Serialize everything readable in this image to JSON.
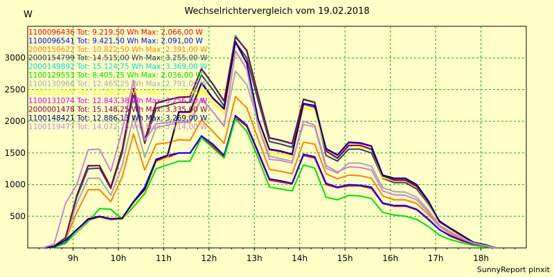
{
  "footer": "SunnyReport pinxit",
  "chart_data": {
    "type": "line",
    "title": "Wechselrichtervergleich vom 19.02.2018",
    "ylabel": "W",
    "xlim": [
      "08:00",
      "19:00"
    ],
    "ylim": [
      0,
      3500
    ],
    "yticks": [
      500,
      1000,
      1500,
      2000,
      2500,
      3000
    ],
    "xticks": [
      "9h",
      "10h",
      "11h",
      "12h",
      "13h",
      "14h",
      "15h",
      "16h",
      "17h",
      "18h"
    ],
    "grid": true,
    "legend_position": "top-left",
    "x": [
      "08:20",
      "08:35",
      "08:50",
      "09:05",
      "09:20",
      "09:35",
      "09:50",
      "10:05",
      "10:20",
      "10:35",
      "10:50",
      "11:05",
      "11:20",
      "11:35",
      "11:50",
      "12:05",
      "12:20",
      "12:35",
      "12:50",
      "13:05",
      "13:20",
      "13:35",
      "13:50",
      "14:05",
      "14:20",
      "14:35",
      "14:50",
      "15:05",
      "15:20",
      "15:35",
      "15:50",
      "16:05",
      "16:20",
      "16:35",
      "16:50",
      "17:05",
      "17:20",
      "17:35",
      "17:50",
      "18:05",
      "18:20"
    ],
    "series": [
      {
        "name": "1100096436 Tot: 9.219,50 Wh Max: 2.066,00 W",
        "color": "#ff0000",
        "values": [
          0,
          10,
          80,
          280,
          440,
          500,
          440,
          460,
          720,
          940,
          1370,
          1430,
          1500,
          1500,
          1750,
          1610,
          1440,
          2060,
          1920,
          1500,
          1070,
          1040,
          1010,
          1460,
          1420,
          1000,
          950,
          980,
          980,
          940,
          700,
          660,
          660,
          600,
          450,
          290,
          180,
          110,
          60,
          30,
          0
        ]
      },
      {
        "name": "1100096541 Tot: 9.421,50 Wh Max: 2.091,00 W",
        "color": "#0000ff",
        "values": [
          0,
          10,
          80,
          280,
          460,
          500,
          450,
          470,
          730,
          960,
          1400,
          1460,
          1500,
          1500,
          1770,
          1640,
          1460,
          2090,
          1940,
          1520,
          1090,
          1060,
          1020,
          1480,
          1440,
          1020,
          960,
          1000,
          990,
          960,
          710,
          670,
          670,
          610,
          460,
          290,
          190,
          120,
          60,
          30,
          0
        ]
      },
      {
        "name": "2000150622 Tot: 10.822,50 Wh Max: 2.391,00 W",
        "color": "#ff8000",
        "values": [
          0,
          20,
          120,
          560,
          920,
          920,
          730,
          1120,
          1800,
          1230,
          1640,
          1660,
          1710,
          1700,
          2020,
          1840,
          1650,
          2390,
          2210,
          1720,
          1240,
          1210,
          1170,
          1670,
          1640,
          1170,
          1090,
          1150,
          1140,
          1100,
          820,
          760,
          760,
          700,
          530,
          340,
          220,
          140,
          70,
          40,
          0
        ]
      },
      {
        "name": "2000154799 Tot: 14.515,00 Wh Max: 3.255,00 W",
        "color": "#403860",
        "values": [
          0,
          30,
          160,
          800,
          1250,
          1260,
          940,
          1500,
          2430,
          1650,
          2210,
          2250,
          2300,
          2300,
          2730,
          2500,
          2240,
          3250,
          3000,
          2330,
          1680,
          1640,
          1590,
          2270,
          2220,
          1460,
          1370,
          1560,
          1560,
          1500,
          1100,
          1030,
          1030,
          930,
          700,
          410,
          290,
          180,
          90,
          50,
          0
        ]
      },
      {
        "name": "2000149892 Tot: 15.124,75 Wh Max: 3.369,00 W",
        "color": "#00d8d8",
        "values": [
          0,
          30,
          160,
          820,
          1290,
          1300,
          960,
          1540,
          2500,
          1700,
          2280,
          2330,
          2370,
          2380,
          2820,
          2580,
          2310,
          3360,
          3100,
          2410,
          1730,
          1690,
          1640,
          2340,
          2290,
          1520,
          1410,
          1610,
          1610,
          1550,
          1130,
          1060,
          1060,
          960,
          720,
          420,
          300,
          190,
          90,
          50,
          0
        ]
      },
      {
        "name": "1100129553 Tot: 8.405,75 Wh Max: 2.036,00 W",
        "color": "#00e000",
        "values": [
          0,
          10,
          70,
          250,
          410,
          620,
          610,
          450,
          650,
          860,
          1250,
          1310,
          1370,
          1370,
          1740,
          1580,
          1420,
          2040,
          1840,
          1420,
          960,
          930,
          900,
          1310,
          1260,
          800,
          760,
          830,
          820,
          780,
          560,
          520,
          500,
          450,
          340,
          200,
          130,
          80,
          40,
          20,
          0
        ]
      },
      {
        "name": "1100130966 Tot: 12.465,25 Wh Max: 2.791,00 W",
        "color": "#a8a8a8",
        "values": [
          0,
          20,
          140,
          700,
          1100,
          1100,
          830,
          1300,
          2080,
          1430,
          1900,
          1940,
          1980,
          1980,
          2350,
          2150,
          1930,
          2790,
          2580,
          2000,
          1450,
          1410,
          1370,
          1950,
          1910,
          1260,
          1180,
          1340,
          1340,
          1290,
          950,
          890,
          880,
          800,
          600,
          360,
          250,
          160,
          80,
          40,
          0
        ]
      },
      {
        "name": "1100131025 Tot: 12.266,25 Wh Max: 3.121,00 W",
        "color": "#ffff00",
        "values": [
          0,
          20,
          120,
          270,
          430,
          480,
          440,
          450,
          700,
          900,
          1350,
          1420,
          2080,
          2080,
          2530,
          2300,
          2130,
          3120,
          2830,
          1980,
          1510,
          1480,
          1430,
          2210,
          2180,
          1520,
          1420,
          1620,
          1600,
          1560,
          1110,
          1060,
          1060,
          960,
          720,
          400,
          290,
          180,
          90,
          50,
          0
        ]
      },
      {
        "name": "1100131074 Tot: 12.843,38 Wh Max: 3.256,00 W",
        "color": "#e000e0",
        "values": [
          0,
          20,
          120,
          280,
          440,
          490,
          450,
          460,
          720,
          920,
          1380,
          1450,
          2140,
          2140,
          2600,
          2360,
          2190,
          3250,
          2910,
          2030,
          1550,
          1520,
          1470,
          2270,
          2240,
          1560,
          1460,
          1660,
          1650,
          1600,
          1140,
          1090,
          1090,
          990,
          740,
          410,
          300,
          190,
          90,
          50,
          0
        ]
      },
      {
        "name": "2000001478 Tot: 15.148,25 Wh Max: 3.335,00 W",
        "color": "#800040",
        "values": [
          0,
          30,
          160,
          830,
          1300,
          1300,
          960,
          1550,
          2520,
          1710,
          2290,
          2340,
          2380,
          2390,
          2830,
          2590,
          2320,
          3330,
          3120,
          2420,
          1740,
          1700,
          1650,
          2350,
          2300,
          1530,
          1420,
          1620,
          1620,
          1560,
          1140,
          1070,
          1070,
          970,
          730,
          430,
          300,
          190,
          90,
          50,
          0
        ]
      },
      {
        "name": "1100148421 Tot: 12.886,13 Wh Max: 3.269,00 W",
        "color": "#000080",
        "values": [
          0,
          20,
          120,
          290,
          450,
          500,
          460,
          470,
          730,
          930,
          1390,
          1460,
          2150,
          2150,
          2610,
          2370,
          2200,
          3260,
          2920,
          2040,
          1560,
          1530,
          1480,
          2280,
          2250,
          1570,
          1470,
          1670,
          1660,
          1610,
          1150,
          1100,
          1100,
          1000,
          750,
          420,
          310,
          200,
          90,
          50,
          0
        ]
      },
      {
        "name": "1100119477 Tot: 14.072,75 Wh Max: 3.114,00 W",
        "color": "#d080d0",
        "values": [
          0,
          60,
          700,
          1000,
          1550,
          1560,
          1210,
          1850,
          2650,
          1700,
          1960,
          1980,
          2000,
          2000,
          2360,
          2150,
          1920,
          3110,
          2820,
          1930,
          1400,
          1380,
          1340,
          2000,
          1940,
          1300,
          1200,
          1280,
          1270,
          1230,
          900,
          840,
          830,
          760,
          570,
          340,
          240,
          150,
          80,
          40,
          0
        ]
      }
    ]
  }
}
